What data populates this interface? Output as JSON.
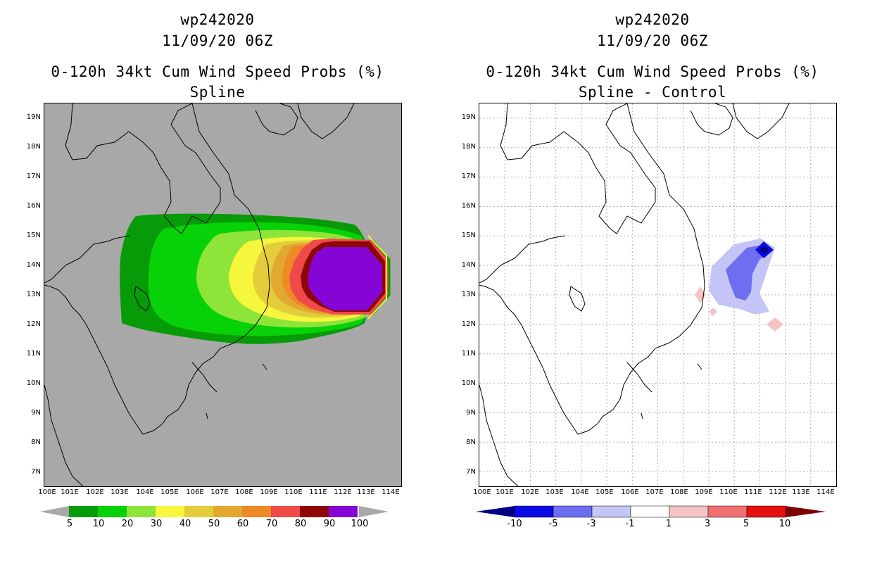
{
  "left_panel": {
    "title_line1": "wp242020",
    "title_line2": "11/09/20 06Z",
    "title_line3": "0-120h 34kt Cum Wind Speed Probs (%)",
    "title_line4": "Spline",
    "colorbar": {
      "colors": [
        "#079b07",
        "#07d207",
        "#8fe43a",
        "#f6f63d",
        "#e3cd3a",
        "#e2a830",
        "#ee8a26",
        "#ef4a4a",
        "#8e0707",
        "#8505d5"
      ],
      "labels": [
        "5",
        "10",
        "20",
        "30",
        "40",
        "50",
        "60",
        "70",
        "80",
        "90",
        "100"
      ],
      "end_arrow_color": "#a8a8a8"
    }
  },
  "right_panel": {
    "title_line1": "wp242020",
    "title_line2": "11/09/20 06Z",
    "title_line3": "0-120h 34kt Cum Wind Speed Probs (%)",
    "title_line4": "Spline - Control",
    "colorbar": {
      "colors": [
        "#000080",
        "#0a0ae6",
        "#6e6ef0",
        "#c4c4f6",
        "#ffffff",
        "#f6c4c4",
        "#f07070",
        "#e61010",
        "#7d0000"
      ],
      "labels": [
        "-10",
        "-5",
        "-3",
        "-1",
        "1",
        "3",
        "5",
        "10"
      ]
    }
  },
  "lat_labels": [
    "19N",
    "18N",
    "17N",
    "16N",
    "15N",
    "14N",
    "13N",
    "12N",
    "11N",
    "10N",
    "9N",
    "8N",
    "7N"
  ],
  "lon_labels": [
    "100E",
    "101E",
    "102E",
    "103E",
    "104E",
    "105E",
    "106E",
    "107E",
    "108E",
    "109E",
    "110E",
    "111E",
    "112E",
    "113E",
    "114E"
  ],
  "map_extent": {
    "lon_min": 100,
    "lon_max": 114,
    "lat_min": 6.5,
    "lat_max": 19.5
  },
  "colors": {
    "background_left": "#a8a8a8",
    "coastline": "#000000",
    "grid_right": "#b0b0b0"
  }
}
